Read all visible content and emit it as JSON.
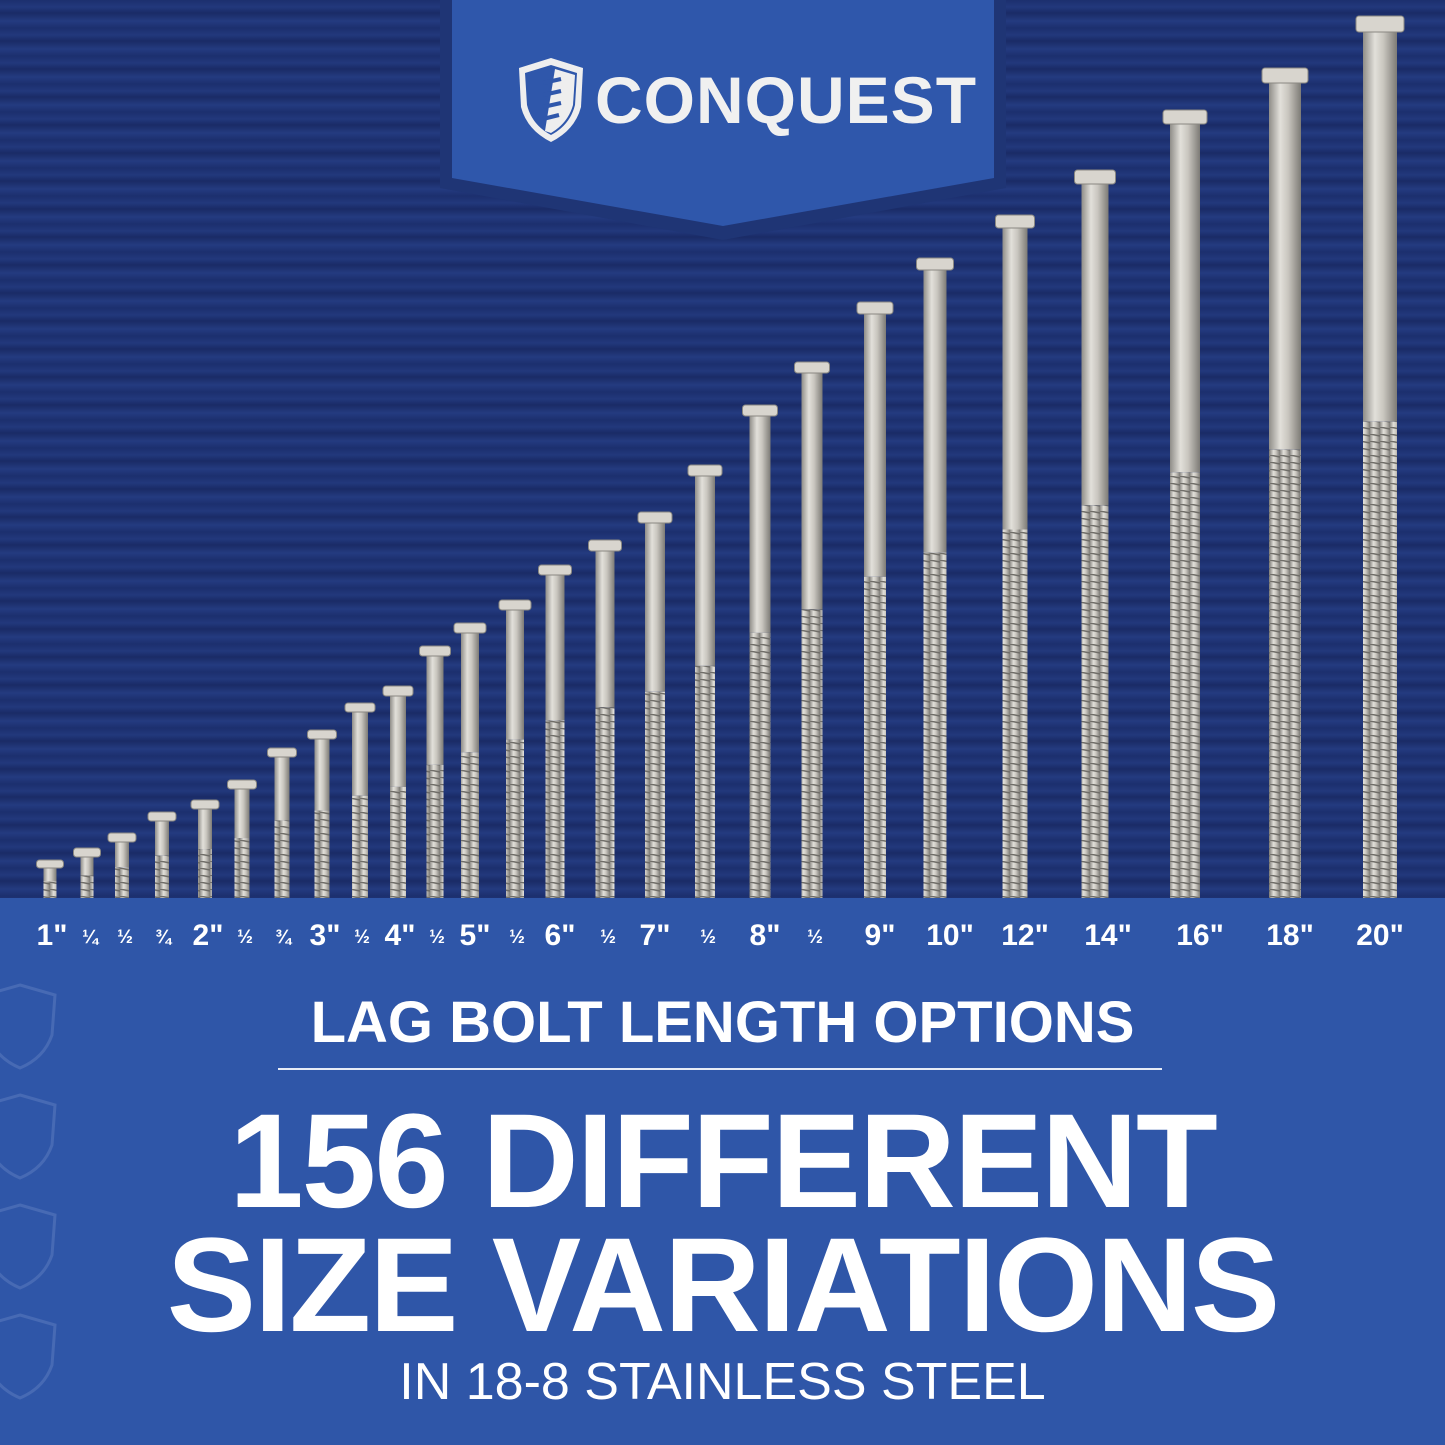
{
  "brand": {
    "name": "CONQUEST",
    "banner_color": "#2f57ab",
    "background_color": "#1c2f6e"
  },
  "bolts": [
    {
      "label": "1\"",
      "length_in": 1
    },
    {
      "label": "¼",
      "length_in": 1.25
    },
    {
      "label": "½",
      "length_in": 1.5
    },
    {
      "label": "¾",
      "length_in": 1.75
    },
    {
      "label": "2\"",
      "length_in": 2
    },
    {
      "label": "½",
      "length_in": 2.5
    },
    {
      "label": "¾",
      "length_in": 2.75
    },
    {
      "label": "3\"",
      "length_in": 3
    },
    {
      "label": "½",
      "length_in": 3.5
    },
    {
      "label": "4\"",
      "length_in": 4
    },
    {
      "label": "½",
      "length_in": 4.5
    },
    {
      "label": "5\"",
      "length_in": 5
    },
    {
      "label": "½",
      "length_in": 5.5
    },
    {
      "label": "6\"",
      "length_in": 6
    },
    {
      "label": "½",
      "length_in": 6.5
    },
    {
      "label": "7\"",
      "length_in": 7
    },
    {
      "label": "½",
      "length_in": 7.5
    },
    {
      "label": "8\"",
      "length_in": 8
    },
    {
      "label": "½",
      "length_in": 8.5
    },
    {
      "label": "9\"",
      "length_in": 9
    },
    {
      "label": "10\"",
      "length_in": 10
    },
    {
      "label": "12\"",
      "length_in": 12
    },
    {
      "label": "14\"",
      "length_in": 14
    },
    {
      "label": "16\"",
      "length_in": 16
    },
    {
      "label": "18\"",
      "length_in": 18
    },
    {
      "label": "20\"",
      "length_in": 20
    }
  ],
  "headline": {
    "subtitle": "LAG BOLT LENGTH OPTIONS",
    "line1": "156 DIFFERENT",
    "line2": "SIZE VARIATIONS",
    "footer": "IN 18-8 STAINLESS STEEL"
  }
}
